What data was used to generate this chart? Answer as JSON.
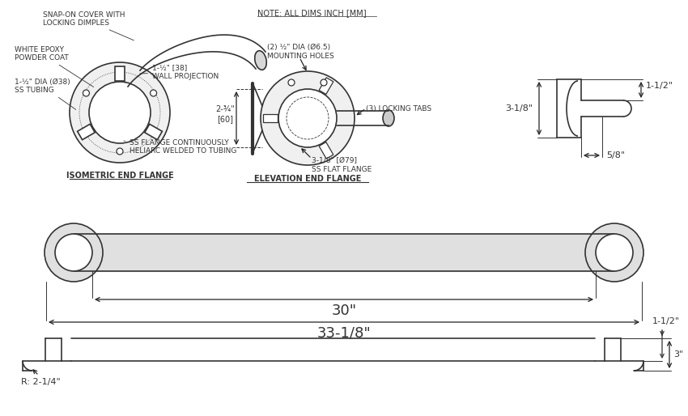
{
  "line_color": "#333333",
  "line_width": 1.2,
  "thin_line": 0.7,
  "label_isometric": "ISOMETRIC END FLANGE",
  "label_elevation": "ELEVATION END FLANGE",
  "note_text": "NOTE: ALL DIMS INCH [MM]",
  "dim_30": "30\"",
  "dim_33": "33-1/8\"",
  "dim_1_5_top": "1-1/2\"",
  "dim_3_1_8": "3-1/8\"",
  "dim_5_8": "5/8\"",
  "dim_r_2_1_4": "R: 2-1/4\"",
  "dim_1_5_side": "1-1/2\"",
  "dim_3": "3\""
}
